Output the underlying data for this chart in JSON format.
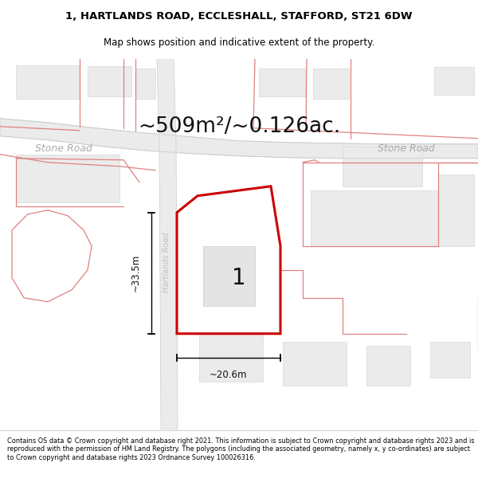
{
  "title_line1": "1, HARTLANDS ROAD, ECCLESHALL, STAFFORD, ST21 6DW",
  "title_line2": "Map shows position and indicative extent of the property.",
  "area_text": "~509m²/~0.126ac.",
  "road_label_left": "Stone Road",
  "road_label_right": "Stone Road",
  "road_label_vertical": "Hartlands Road",
  "plot_number": "1",
  "dim_horizontal": "~20.6m",
  "dim_vertical": "~33.5m",
  "footer": "Contains OS data © Crown copyright and database right 2021. This information is subject to Crown copyright and database rights 2023 and is reproduced with the permission of HM Land Registry. The polygons (including the associated geometry, namely x, y co-ordinates) are subject to Crown copyright and database rights 2023 Ordnance Survey 100026316.",
  "bg_color": "#ffffff",
  "map_bg": "#f8f7f5",
  "road_fill": "#ebebeb",
  "road_edge": "#cccccc",
  "plot_fill": "#ffffff",
  "plot_border": "#cc0000",
  "building_fill": "#e8e8e8",
  "building_edge": "#d0d0d0",
  "red_line": "#e08080",
  "title_fontsize": 9.5,
  "subtitle_fontsize": 8.5,
  "area_fontsize": 19,
  "road_label_fontsize": 9,
  "hartlands_fontsize": 7,
  "dim_fontsize": 8.5,
  "footer_fontsize": 5.9
}
